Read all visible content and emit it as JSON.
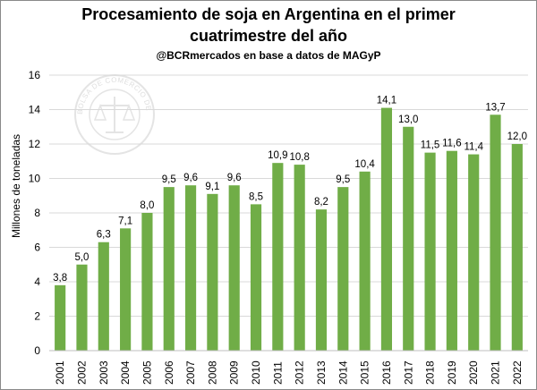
{
  "header": {
    "title_line1": "Procesamiento de soja en Argentina en el primer",
    "title_line2": "cuatrimestre del año",
    "subtitle": "@BCRmercados en base a datos de MAGyP"
  },
  "watermark": {
    "text_top": "BOLSA DE COMERCIO DE ROSARIO"
  },
  "chart_data": {
    "type": "bar",
    "title": "Procesamiento de soja en Argentina en el primer cuatrimestre del año",
    "subtitle": "@BCRmercados en base a datos de MAGyP",
    "xlabel": "",
    "ylabel": "Millones de toneladas",
    "ylim": [
      0,
      16
    ],
    "yticks": [
      0,
      2,
      4,
      6,
      8,
      10,
      12,
      14,
      16
    ],
    "bar_color": "#70ad47",
    "grid": true,
    "categories": [
      "2001",
      "2002",
      "2003",
      "2004",
      "2005",
      "2006",
      "2007",
      "2008",
      "2009",
      "2010",
      "2011",
      "2012",
      "2013",
      "2014",
      "2015",
      "2016",
      "2017",
      "2018",
      "2019",
      "2020",
      "2021",
      "2022"
    ],
    "values": [
      3.8,
      5.0,
      6.3,
      7.1,
      8.0,
      9.5,
      9.6,
      9.1,
      9.6,
      8.5,
      10.9,
      10.8,
      8.2,
      9.5,
      10.4,
      14.1,
      13.0,
      11.5,
      11.6,
      11.4,
      13.7,
      12.0
    ],
    "data_labels": [
      "3,8",
      "5,0",
      "6,3",
      "7,1",
      "8,0",
      "9,5",
      "9,6",
      "9,1",
      "9,6",
      "8,5",
      "10,9",
      "10,8",
      "8,2",
      "9,5",
      "10,4",
      "14,1",
      "13,0",
      "11,5",
      "11,6",
      "11,4",
      "13,7",
      "12,0"
    ]
  }
}
